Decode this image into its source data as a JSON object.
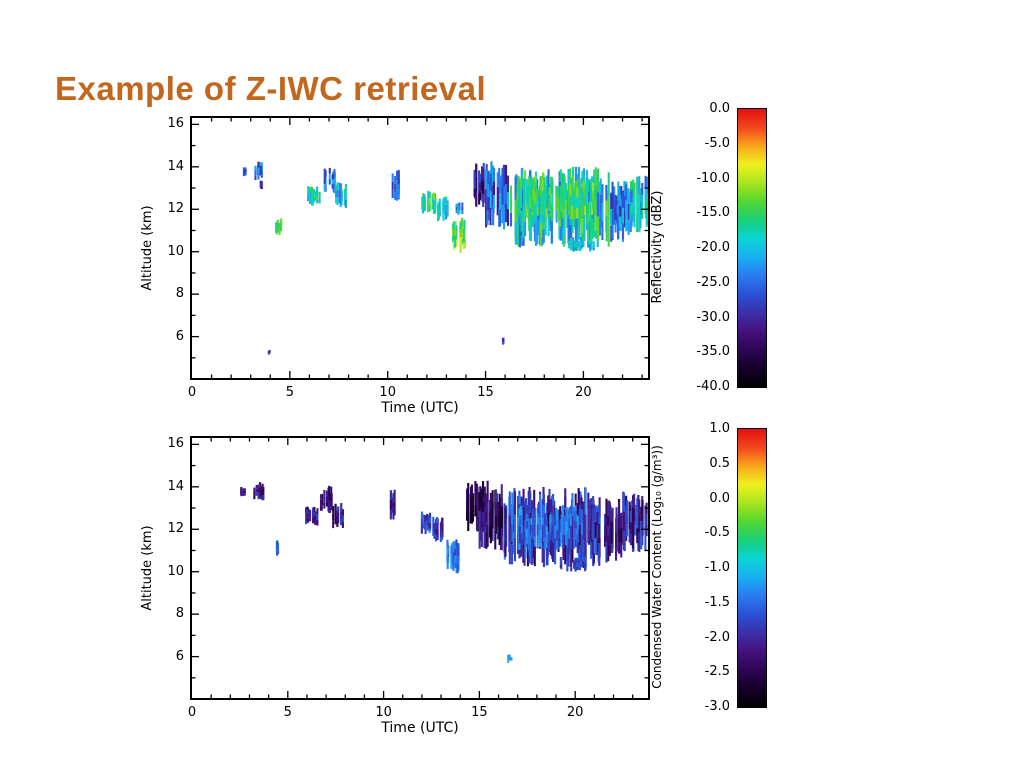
{
  "slide": {
    "title": "Example of Z-IWC retrieval",
    "title_color": "#c2671d",
    "background": "#ffffff"
  },
  "chart_data": [
    {
      "type": "heatmap",
      "title": "",
      "xlabel": "Time (UTC)",
      "ylabel": "Altitude (km)",
      "xlim": [
        0,
        23.3
      ],
      "ylim": [
        4.05,
        16.3
      ],
      "xticks": [
        "0",
        "5",
        "10",
        "15",
        "20"
      ],
      "xtick_values": [
        0,
        5,
        10,
        15,
        20
      ],
      "yticks": [
        "16",
        "14",
        "12",
        "10",
        "8",
        "6"
      ],
      "ytick_values": [
        16,
        14,
        12,
        10,
        8,
        6
      ],
      "grid": false,
      "seed": 11,
      "colorbar": {
        "label": "Reflectivity (dBZ)",
        "ticks": [
          "0.0",
          "-5.0",
          "-10.0",
          "-15.0",
          "-20.0",
          "-25.0",
          "-30.0",
          "-35.0",
          "-40.0"
        ],
        "min": -40,
        "max": 0,
        "colors": [
          "#000000",
          "#14002a",
          "#2e0653",
          "#45127e",
          "#3b2fa8",
          "#2a52d6",
          "#2b7bf0",
          "#18aef0",
          "#0cd4d4",
          "#18cf7a",
          "#52d633",
          "#a8e41e",
          "#eef01e",
          "#f9a61c",
          "#f4441e",
          "#e11212"
        ]
      },
      "echoes": [
        {
          "t0": 2.55,
          "t1": 2.78,
          "a0": 13.55,
          "a1": 14.0,
          "v": -27,
          "r": 3,
          "d": 1.0
        },
        {
          "t0": 3.22,
          "t1": 3.78,
          "a0": 13.35,
          "a1": 14.25,
          "v": -26,
          "r": 5,
          "d": 1.1
        },
        {
          "t0": 3.35,
          "t1": 3.6,
          "a0": 12.95,
          "a1": 13.35,
          "v": -29,
          "r": 3,
          "d": 0.7
        },
        {
          "t0": 4.25,
          "t1": 4.58,
          "a0": 10.75,
          "a1": 11.6,
          "v": -14,
          "r": 4,
          "d": 1.1
        },
        {
          "t0": 5.9,
          "t1": 6.6,
          "a0": 12.15,
          "a1": 13.1,
          "v": -18,
          "r": 5,
          "d": 1.1
        },
        {
          "t0": 6.7,
          "t1": 7.3,
          "a0": 12.75,
          "a1": 14.05,
          "v": -25,
          "r": 5,
          "d": 1.1
        },
        {
          "t0": 7.35,
          "t1": 7.9,
          "a0": 12.05,
          "a1": 13.3,
          "v": -21,
          "r": 5,
          "d": 1.0
        },
        {
          "t0": 10.25,
          "t1": 10.6,
          "a0": 12.4,
          "a1": 13.9,
          "v": -26,
          "r": 4,
          "d": 1.0
        },
        {
          "t0": 11.75,
          "t1": 12.45,
          "a0": 11.75,
          "a1": 12.9,
          "v": -16,
          "r": 5,
          "d": 1.1
        },
        {
          "t0": 12.55,
          "t1": 13.1,
          "a0": 11.4,
          "a1": 12.6,
          "v": -20,
          "r": 4,
          "d": 1.1
        },
        {
          "t0": 13.25,
          "t1": 13.95,
          "a0": 9.9,
          "a1": 11.6,
          "v": -13,
          "r": 5,
          "d": 1.2
        },
        {
          "t0": 13.5,
          "t1": 13.85,
          "a0": 11.6,
          "a1": 12.4,
          "v": -23,
          "r": 4,
          "d": 0.9
        },
        {
          "t0": 14.35,
          "t1": 14.95,
          "a0": 11.9,
          "a1": 14.3,
          "v": -31,
          "r": 5,
          "d": 1.1
        },
        {
          "t0": 15.0,
          "t1": 16.2,
          "a0": 11.0,
          "a1": 14.3,
          "v": -26,
          "r": 6,
          "d": 1.2
        },
        {
          "t0": 15.88,
          "t1": 16.05,
          "a0": 5.6,
          "a1": 6.05,
          "v": -28,
          "r": 3,
          "d": 0.8
        },
        {
          "t0": 16.2,
          "t1": 21.3,
          "a0": 10.2,
          "a1": 14.0,
          "v": -19,
          "r": 7,
          "d": 1.35
        },
        {
          "t0": 16.6,
          "t1": 20.5,
          "a0": 11.4,
          "a1": 13.6,
          "v": -15,
          "r": 4,
          "d": 0.9
        },
        {
          "t0": 19.2,
          "t1": 20.6,
          "a0": 10.0,
          "a1": 10.7,
          "v": -20,
          "r": 4,
          "d": 0.8
        },
        {
          "t0": 21.3,
          "t1": 22.35,
          "a0": 10.4,
          "a1": 13.4,
          "v": -24,
          "r": 6,
          "d": 1.2
        },
        {
          "t0": 22.4,
          "t1": 23.3,
          "a0": 10.9,
          "a1": 13.7,
          "v": -20,
          "r": 6,
          "d": 1.1
        },
        {
          "t0": 3.85,
          "t1": 4.0,
          "a0": 5.15,
          "a1": 5.4,
          "v": -30,
          "r": 2,
          "d": 0.5
        }
      ]
    },
    {
      "type": "heatmap",
      "title": "",
      "xlabel": "Time (UTC)",
      "ylabel": "Altitude (km)",
      "xlim": [
        0,
        23.8
      ],
      "ylim": [
        4.05,
        16.3
      ],
      "xticks": [
        "0",
        "5",
        "10",
        "15",
        "20"
      ],
      "xtick_values": [
        0,
        5,
        10,
        15,
        20
      ],
      "yticks": [
        "16",
        "14",
        "12",
        "10",
        "8",
        "6"
      ],
      "ytick_values": [
        16,
        14,
        12,
        10,
        8,
        6
      ],
      "grid": false,
      "seed": 29,
      "colorbar": {
        "label": "Condensed Water Content (Log₁₀ (g/m³))",
        "ticks": [
          "1.0",
          "0.5",
          "0.0",
          "-0.5",
          "-1.0",
          "-1.5",
          "-2.0",
          "-2.5",
          "-3.0"
        ],
        "min": -3,
        "max": 1,
        "colors": [
          "#000000",
          "#14002a",
          "#2e0653",
          "#45127e",
          "#3b2fa8",
          "#2a52d6",
          "#2b7bf0",
          "#18aef0",
          "#0cd4d4",
          "#18cf7a",
          "#52d633",
          "#a8e41e",
          "#eef01e",
          "#f9a61c",
          "#f4441e",
          "#e11212"
        ]
      },
      "echoes": [
        {
          "t0": 2.55,
          "t1": 2.78,
          "a0": 13.55,
          "a1": 14.0,
          "v": -2.1,
          "r": 0.3,
          "d": 1.0
        },
        {
          "t0": 3.22,
          "t1": 3.78,
          "a0": 13.35,
          "a1": 14.25,
          "v": -2.2,
          "r": 0.4,
          "d": 1.1
        },
        {
          "t0": 4.35,
          "t1": 4.62,
          "a0": 10.75,
          "a1": 11.5,
          "v": -1.6,
          "r": 0.3,
          "d": 1.0
        },
        {
          "t0": 5.9,
          "t1": 6.6,
          "a0": 12.15,
          "a1": 13.1,
          "v": -2.0,
          "r": 0.4,
          "d": 1.1
        },
        {
          "t0": 6.7,
          "t1": 7.3,
          "a0": 12.75,
          "a1": 14.05,
          "v": -2.3,
          "r": 0.4,
          "d": 1.1
        },
        {
          "t0": 7.35,
          "t1": 7.9,
          "a0": 12.05,
          "a1": 13.3,
          "v": -2.1,
          "r": 0.4,
          "d": 1.0
        },
        {
          "t0": 10.25,
          "t1": 10.6,
          "a0": 12.4,
          "a1": 13.9,
          "v": -2.2,
          "r": 0.3,
          "d": 1.0
        },
        {
          "t0": 11.75,
          "t1": 12.45,
          "a0": 11.75,
          "a1": 12.9,
          "v": -1.8,
          "r": 0.4,
          "d": 1.1
        },
        {
          "t0": 12.55,
          "t1": 13.1,
          "a0": 11.4,
          "a1": 12.6,
          "v": -1.9,
          "r": 0.4,
          "d": 1.1
        },
        {
          "t0": 13.25,
          "t1": 13.95,
          "a0": 9.9,
          "a1": 11.6,
          "v": -1.5,
          "r": 0.4,
          "d": 1.2
        },
        {
          "t0": 14.35,
          "t1": 14.95,
          "a0": 11.9,
          "a1": 14.3,
          "v": -2.5,
          "r": 0.4,
          "d": 1.1
        },
        {
          "t0": 15.0,
          "t1": 16.3,
          "a0": 11.0,
          "a1": 14.3,
          "v": -2.4,
          "r": 0.5,
          "d": 1.2
        },
        {
          "t0": 16.3,
          "t1": 21.3,
          "a0": 10.2,
          "a1": 14.0,
          "v": -1.9,
          "r": 0.6,
          "d": 1.35
        },
        {
          "t0": 17.0,
          "t1": 20.5,
          "a0": 11.0,
          "a1": 13.2,
          "v": -1.5,
          "r": 0.4,
          "d": 0.9
        },
        {
          "t0": 19.2,
          "t1": 20.6,
          "a0": 10.0,
          "a1": 10.7,
          "v": -1.8,
          "r": 0.3,
          "d": 0.8
        },
        {
          "t0": 21.3,
          "t1": 22.45,
          "a0": 10.4,
          "a1": 13.5,
          "v": -2.2,
          "r": 0.5,
          "d": 1.2
        },
        {
          "t0": 22.5,
          "t1": 23.8,
          "a0": 10.9,
          "a1": 13.8,
          "v": -2.0,
          "r": 0.5,
          "d": 1.1
        },
        {
          "t0": 16.5,
          "t1": 16.72,
          "a0": 5.7,
          "a1": 6.1,
          "v": -1.2,
          "r": 0.2,
          "d": 0.8
        }
      ]
    }
  ]
}
